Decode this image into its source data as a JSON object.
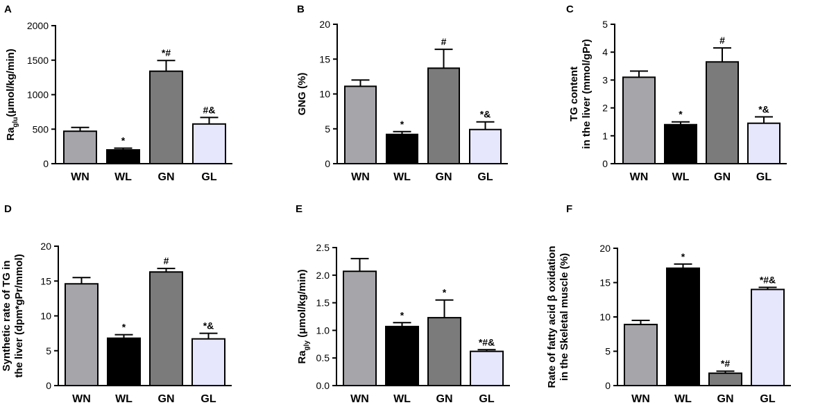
{
  "chart_data": [
    {
      "panel": "A",
      "type": "bar",
      "ylabel_main": "Ra",
      "ylabel_sub": "glu",
      "ylabel_rest": "(μmol/kg/min)",
      "categories": [
        "WN",
        "WL",
        "GN",
        "GL"
      ],
      "values": [
        470,
        200,
        1340,
        575
      ],
      "errors": [
        55,
        25,
        155,
        95
      ],
      "labels": [
        "",
        "*",
        "*#",
        "#&"
      ],
      "colors": [
        "#a6a6aa",
        "#000000",
        "#7b7b7b",
        "#e6e6fc"
      ],
      "ylim": [
        0,
        2000
      ],
      "yticks": [
        0,
        500,
        1000,
        1500,
        2000
      ],
      "yticklabels": [
        "0",
        "500",
        "1000",
        "1500",
        "2000"
      ]
    },
    {
      "panel": "B",
      "type": "bar",
      "ylabel": "GNG (%)",
      "categories": [
        "WN",
        "WL",
        "GN",
        "GL"
      ],
      "values": [
        11.1,
        4.2,
        13.7,
        4.9
      ],
      "errors": [
        0.9,
        0.4,
        2.7,
        1.1
      ],
      "labels": [
        "",
        "*",
        "#",
        "*&"
      ],
      "colors": [
        "#a6a6aa",
        "#000000",
        "#7b7b7b",
        "#e6e6fc"
      ],
      "ylim": [
        0,
        20
      ],
      "yticks": [
        0,
        5,
        10,
        15,
        20
      ],
      "yticklabels": [
        "0",
        "5",
        "10",
        "15",
        "20"
      ]
    },
    {
      "panel": "C",
      "type": "bar",
      "ylabel": "TG content",
      "ylabel2": "in the liver (mmol/gPr)",
      "categories": [
        "WN",
        "WL",
        "GN",
        "GL"
      ],
      "values": [
        3.1,
        1.4,
        3.65,
        1.45
      ],
      "errors": [
        0.22,
        0.1,
        0.5,
        0.23
      ],
      "labels": [
        "",
        "*",
        "#",
        "*&"
      ],
      "colors": [
        "#a6a6aa",
        "#000000",
        "#7b7b7b",
        "#e6e6fc"
      ],
      "ylim": [
        0,
        5
      ],
      "yticks": [
        0,
        1,
        2,
        3,
        4,
        5
      ],
      "yticklabels": [
        "0",
        "1",
        "2",
        "3",
        "4",
        "5"
      ]
    },
    {
      "panel": "D",
      "type": "bar",
      "ylabel": "Synthetic rate of TG in",
      "ylabel2": "the liver (dpm*gPr/mmol)",
      "categories": [
        "WN",
        "WL",
        "GN",
        "GL"
      ],
      "values": [
        14.6,
        6.8,
        16.3,
        6.7
      ],
      "errors": [
        0.9,
        0.5,
        0.5,
        0.8
      ],
      "labels": [
        "",
        "*",
        "#",
        "*&"
      ],
      "colors": [
        "#a6a6aa",
        "#000000",
        "#7b7b7b",
        "#e6e6fc"
      ],
      "ylim": [
        0,
        20
      ],
      "yticks": [
        0,
        5,
        10,
        15,
        20
      ],
      "yticklabels": [
        "0",
        "5",
        "10",
        "15",
        "20"
      ]
    },
    {
      "panel": "E",
      "type": "bar",
      "ylabel_main": "Ra",
      "ylabel_sub": "gly",
      "ylabel_rest": " (μmol/kg/min)",
      "categories": [
        "WN",
        "WL",
        "GN",
        "GL"
      ],
      "values": [
        2.07,
        1.07,
        1.23,
        0.62
      ],
      "errors": [
        0.23,
        0.07,
        0.32,
        0.03
      ],
      "labels": [
        "",
        "*",
        "*",
        "*#&"
      ],
      "colors": [
        "#a6a6aa",
        "#000000",
        "#7b7b7b",
        "#e6e6fc"
      ],
      "ylim": [
        0,
        2.5
      ],
      "yticks": [
        0,
        0.5,
        1.0,
        1.5,
        2.0,
        2.5
      ],
      "yticklabels": [
        "0.0",
        "0.5",
        "1.0",
        "1.5",
        "2.0",
        "2.5"
      ]
    },
    {
      "panel": "F",
      "type": "bar",
      "ylabel": "Rate of fatty acid β oxidation",
      "ylabel2": "in  the  Skeletal muscle (%)",
      "categories": [
        "WN",
        "WL",
        "GN",
        "GL"
      ],
      "values": [
        8.9,
        17.1,
        1.8,
        14.0
      ],
      "errors": [
        0.6,
        0.6,
        0.3,
        0.3
      ],
      "labels": [
        "",
        "*",
        "*#",
        "*#&"
      ],
      "colors": [
        "#a6a6aa",
        "#000000",
        "#7b7b7b",
        "#e6e6fc"
      ],
      "ylim": [
        0,
        20
      ],
      "yticks": [
        0,
        5,
        10,
        15,
        20
      ],
      "yticklabels": [
        "0",
        "5",
        "10",
        "15",
        "20"
      ]
    }
  ]
}
